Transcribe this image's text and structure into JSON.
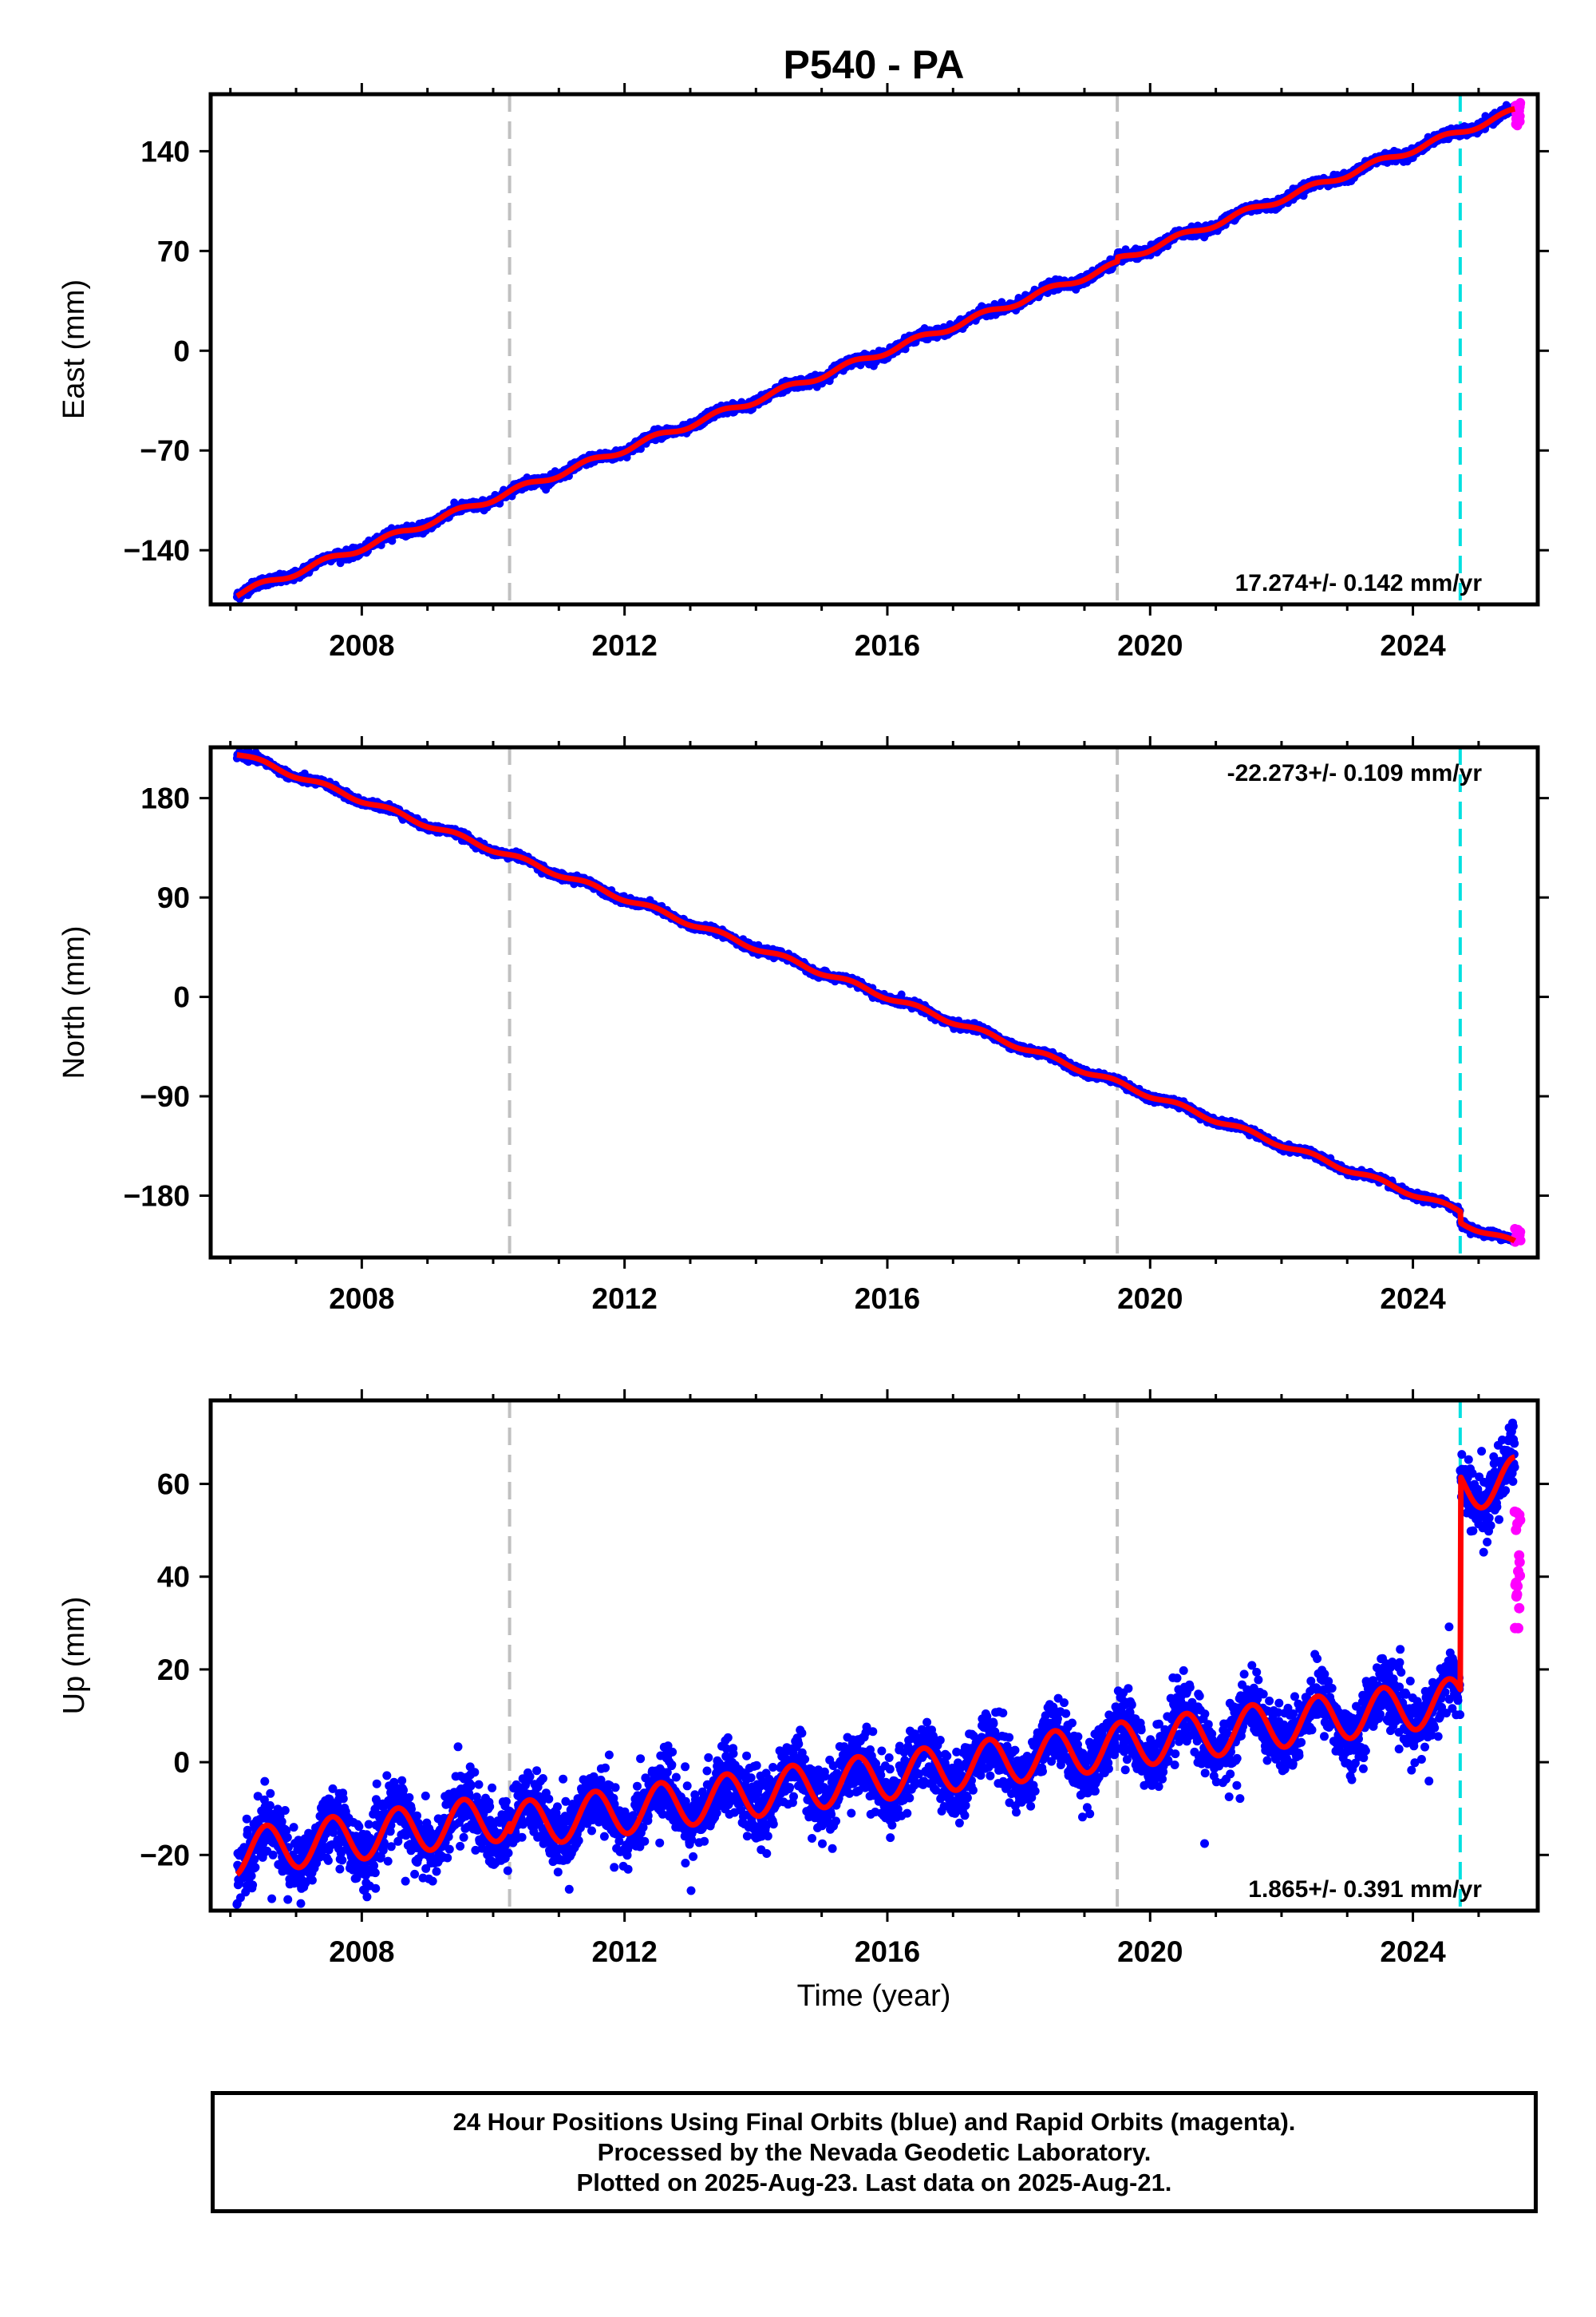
{
  "title": "P540 - PA",
  "xlabel": "Time (year)",
  "xticks": [
    "2008",
    "2012",
    "2016",
    "2020",
    "2024"
  ],
  "colors": {
    "final": "#0000ff",
    "rapid": "#ff00ff",
    "model": "#ff0000",
    "equipment": "#c0c0c0",
    "event": "#00e0e0"
  },
  "chart_data": [
    {
      "type": "scatter",
      "component": "East",
      "ylabel": "East (mm)",
      "xlim": [
        2005.7,
        2025.9
      ],
      "ylim": [
        -178,
        180
      ],
      "yticks": [
        -140,
        -70,
        0,
        70,
        140
      ],
      "rate": "17.274+/- 0.142 mm/yr",
      "rate_position": "bottom-right",
      "rate_mm_per_yr": 17.274,
      "value_at_2016": 0,
      "vertical_lines": [
        {
          "x": 2010.25,
          "style": "gray-dashed"
        },
        {
          "x": 2019.5,
          "style": "gray-dashed"
        },
        {
          "x": 2024.72,
          "style": "cyan-dashed"
        }
      ],
      "offsets": [
        {
          "x": 2019.5,
          "mm": 3
        }
      ],
      "rapid_points": {
        "x_range": [
          2025.55,
          2025.64
        ],
        "y_range": [
          158,
          174
        ]
      },
      "last_value": 158
    },
    {
      "type": "scatter",
      "component": "North",
      "ylabel": "North (mm)",
      "xlim": [
        2005.7,
        2025.9
      ],
      "ylim": [
        -236,
        226
      ],
      "yticks": [
        -180,
        -90,
        0,
        90,
        180
      ],
      "rate": "-22.273+/- 0.109 mm/yr",
      "rate_position": "top-right",
      "rate_mm_per_yr": -22.273,
      "value_at_2016": 0,
      "vertical_lines": [
        {
          "x": 2010.25,
          "style": "gray-dashed"
        },
        {
          "x": 2019.5,
          "style": "gray-dashed"
        },
        {
          "x": 2024.72,
          "style": "cyan-dashed"
        }
      ],
      "offsets": [
        {
          "x": 2024.72,
          "mm": -10
        }
      ],
      "rapid_points": {
        "x_range": [
          2025.55,
          2025.64
        ],
        "y_range": [
          -222,
          -210
        ]
      },
      "last_value": -215
    },
    {
      "type": "scatter",
      "component": "Up",
      "ylabel": "Up (mm)",
      "xlim": [
        2005.7,
        2025.9
      ],
      "ylim": [
        -32,
        78
      ],
      "yticks": [
        -20,
        0,
        20,
        40,
        60
      ],
      "rate": "1.865+/- 0.391 mm/yr",
      "rate_position": "bottom-right",
      "rate_mm_per_yr": 1.865,
      "value_at_2016": -1,
      "seasonal_amplitude_mm": 5,
      "vertical_lines": [
        {
          "x": 2010.25,
          "style": "gray-dashed"
        },
        {
          "x": 2019.5,
          "style": "gray-dashed"
        },
        {
          "x": 2024.72,
          "style": "cyan-dashed"
        }
      ],
      "offsets": [
        {
          "x": 2010.25,
          "mm": -2
        },
        {
          "x": 2024.72,
          "mm": 46
        }
      ],
      "rapid_points": {
        "x_range": [
          2025.55,
          2025.64
        ],
        "y_range": [
          28,
          55
        ]
      },
      "last_value": 63
    }
  ],
  "caption": [
    "24 Hour Positions Using Final Orbits (blue) and Rapid Orbits (magenta).",
    "Processed by the Nevada Geodetic Laboratory.",
    "Plotted on 2025-Aug-23. Last data on 2025-Aug-21."
  ]
}
